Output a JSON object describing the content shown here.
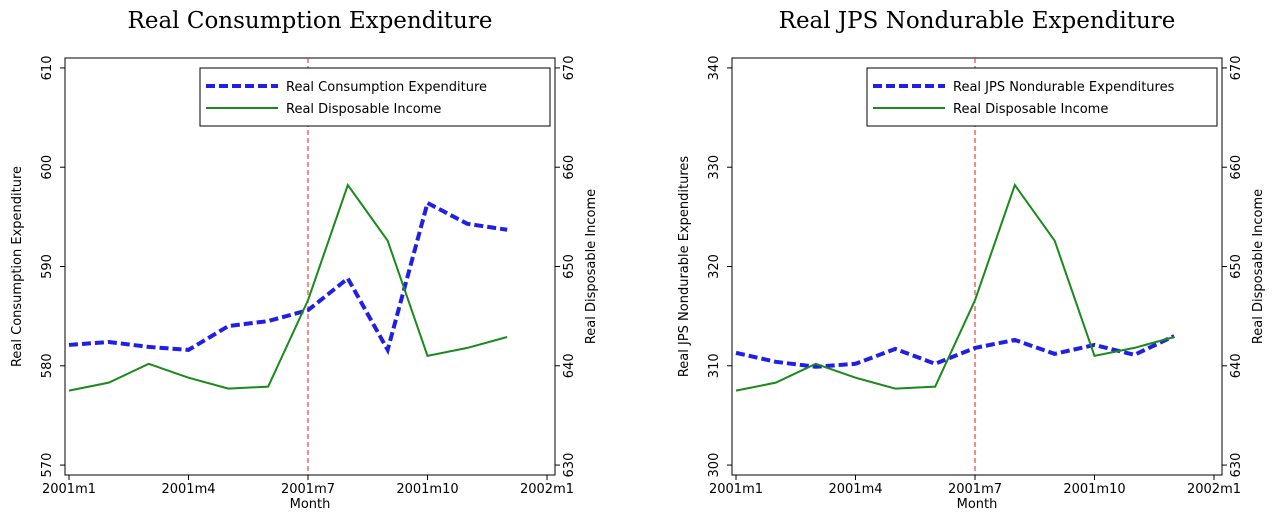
{
  "chart_data": [
    {
      "type": "line",
      "title": "Real Consumption Expenditure",
      "x_label": "Month",
      "y_label": "Real Consumption Expenditure",
      "y2_label": "Real Disposable Income",
      "x": [
        "2001m1",
        "2001m2",
        "2001m3",
        "2001m4",
        "2001m5",
        "2001m6",
        "2001m7",
        "2001m8",
        "2001m9",
        "2001m10",
        "2001m11",
        "2001m12"
      ],
      "xlim": [
        "2001m1",
        "2002m1"
      ],
      "xticks": [
        "2001m1",
        "2001m4",
        "2001m7",
        "2001m10",
        "2002m1"
      ],
      "vline": "2001m7",
      "ylim": [
        569,
        611
      ],
      "yticks": [
        570,
        580,
        590,
        600,
        610
      ],
      "y2lim": [
        629,
        671
      ],
      "y2ticks": [
        630,
        640,
        650,
        660,
        670
      ],
      "legend": "top-right",
      "series": [
        {
          "name": "Real Consumption Expenditure",
          "color": "#1f1fe6",
          "style": "dashed",
          "values": [
            582.1,
            582.4,
            581.9,
            581.6,
            584.0,
            584.5,
            585.6,
            588.8,
            581.6,
            596.4,
            594.3,
            593.7
          ]
        },
        {
          "name": "Real Disposable Income",
          "color": "#1a8a1a",
          "style": "solid",
          "axis": "y2",
          "values": [
            637.5,
            638.3,
            640.2,
            638.8,
            637.7,
            637.9,
            646.6,
            658.2,
            652.6,
            641.0,
            641.8,
            642.9
          ]
        }
      ]
    },
    {
      "type": "line",
      "title": "Real JPS Nondurable Expenditure",
      "x_label": "Month",
      "y_label": "Real JPS Nondurable Expenditures",
      "y2_label": "Real Disposable Income",
      "x": [
        "2001m1",
        "2001m2",
        "2001m3",
        "2001m4",
        "2001m5",
        "2001m6",
        "2001m7",
        "2001m8",
        "2001m9",
        "2001m10",
        "2001m11",
        "2001m12"
      ],
      "xlim": [
        "2001m1",
        "2002m1"
      ],
      "xticks": [
        "2001m1",
        "2001m4",
        "2001m7",
        "2001m10",
        "2002m1"
      ],
      "vline": "2001m7",
      "ylim": [
        299,
        341
      ],
      "yticks": [
        300,
        310,
        320,
        330,
        340
      ],
      "y2lim": [
        629,
        671
      ],
      "y2ticks": [
        630,
        640,
        650,
        660,
        670
      ],
      "legend": "top-right",
      "series": [
        {
          "name": "Real JPS Nondurable Expenditures",
          "color": "#1f1fe6",
          "style": "dashed",
          "values": [
            311.3,
            310.4,
            309.9,
            310.2,
            311.7,
            310.2,
            311.8,
            312.6,
            311.2,
            312.1,
            311.1,
            313.0
          ]
        },
        {
          "name": "Real Disposable Income",
          "color": "#1a8a1a",
          "style": "solid",
          "axis": "y2",
          "values": [
            637.5,
            638.3,
            640.2,
            638.8,
            637.7,
            637.9,
            646.6,
            658.2,
            652.6,
            641.0,
            641.8,
            642.9
          ]
        }
      ]
    }
  ]
}
